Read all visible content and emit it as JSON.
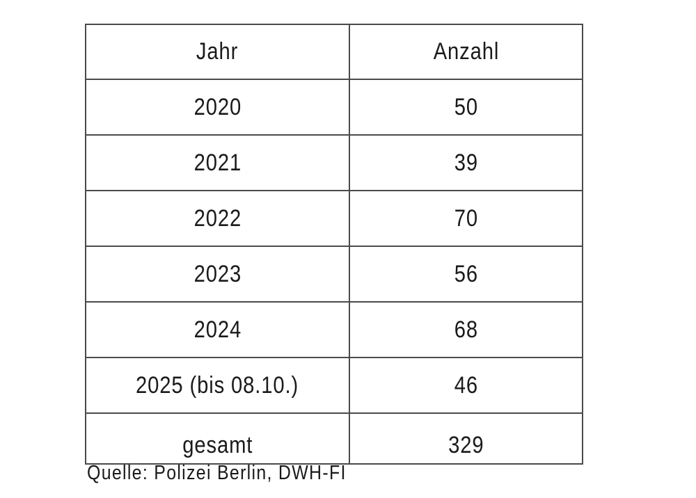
{
  "table": {
    "headers": [
      "Jahr",
      "Anzahl"
    ],
    "rows": [
      [
        "2020",
        "50"
      ],
      [
        "2021",
        "39"
      ],
      [
        "2022",
        "70"
      ],
      [
        "2023",
        "56"
      ],
      [
        "2024",
        "68"
      ],
      [
        "2025 (bis 08.10.)",
        "46"
      ]
    ],
    "total": [
      "gesamt",
      "329"
    ]
  },
  "source": "Quelle: Polizei Berlin, DWH-FI"
}
